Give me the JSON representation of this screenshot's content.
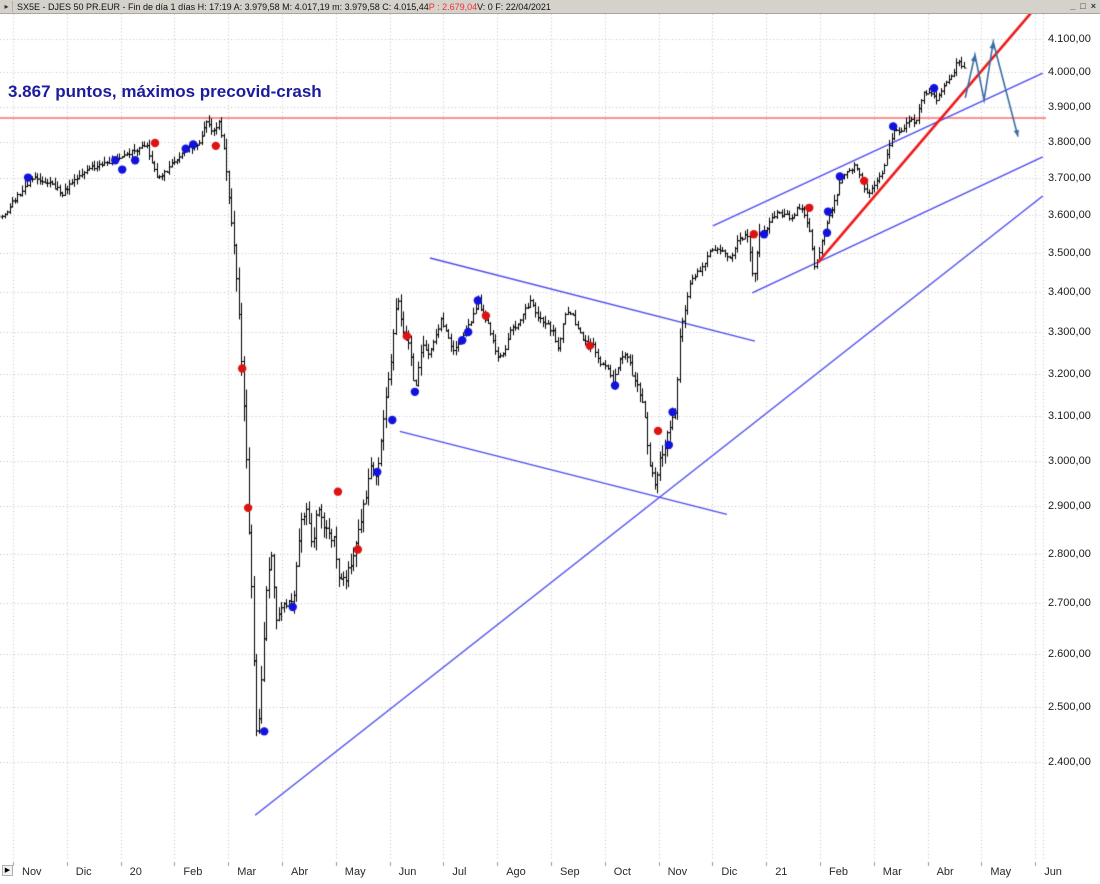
{
  "titlebar": {
    "icon": "▸",
    "main": "SX5E - DJES 50 PR.EUR - Fin de día 1 días  H: 17:19  A: 3.979,58  M: 4.017,19  m: 3.979,58  C: 4.015,44  ",
    "prev_close": "P : 2.679,04",
    "suffix": "  V: 0  F: 22/04/2021",
    "minimize": "_",
    "maximize": "□",
    "close": "×"
  },
  "annotation": {
    "text": "3.867 puntos, máximos precovid-crash",
    "price_level": 3867
  },
  "time_axis": {
    "nav_arrow": "▶"
  },
  "colors": {
    "background": "#ffffff",
    "grid": "#c4c4c4",
    "bars": "#000000",
    "blue_line": "#4d4dee",
    "red_trend": "#ee1a1a",
    "resistance": "#ff9090",
    "annotation": "#1c1c9c",
    "projection": "#3a6da3",
    "dot_blue": "#1212dd",
    "dot_red": "#dd1212",
    "titlebar_bg": "#d5d2cb"
  },
  "chart_data": {
    "type": "bar",
    "instrument": "SX5E - DJES 50 PR.EUR",
    "timeframe": "Fin de día 1 días",
    "ohlc_last": {
      "H": "17:19",
      "A": "3.979,58",
      "M": "4.017,19",
      "m": "3.979,58",
      "C": "4.015,44",
      "P": "2.679,04",
      "V": "0",
      "F": "22/04/2021"
    },
    "y_axis": {
      "scale": "log",
      "labels": [
        "4.100,00",
        "4.000,00",
        "3.900,00",
        "3.800,00",
        "3.700,00",
        "3.600,00",
        "3.500,00",
        "3.400,00",
        "3.300,00",
        "3.200,00",
        "3.100,00",
        "3.000,00",
        "2.900,00",
        "2.800,00",
        "2.700,00",
        "2.600,00",
        "2.500,00",
        "2.400,00"
      ],
      "values": [
        4100,
        4000,
        3900,
        3800,
        3700,
        3600,
        3500,
        3400,
        3300,
        3200,
        3100,
        3000,
        2900,
        2800,
        2700,
        2600,
        2500,
        2400
      ]
    },
    "x_axis": {
      "labels": [
        "Nov",
        "Dic",
        "20",
        "Feb",
        "Mar",
        "Abr",
        "May",
        "Jun",
        "Jul",
        "Ago",
        "Sep",
        "Oct",
        "Nov",
        "Dic",
        "21",
        "Feb",
        "Mar",
        "Abr",
        "May",
        "Jun"
      ],
      "start": "Nov 2019",
      "end": "Jun 2021"
    },
    "close_path": [
      [
        -0.2,
        3595
      ],
      [
        0.34,
        3700
      ],
      [
        0.63,
        3690
      ],
      [
        0.91,
        3660
      ],
      [
        1.21,
        3705
      ],
      [
        1.51,
        3730
      ],
      [
        1.9,
        3748
      ],
      [
        2.19,
        3770
      ],
      [
        2.49,
        3790
      ],
      [
        2.68,
        3690
      ],
      [
        2.88,
        3725
      ],
      [
        3.18,
        3778
      ],
      [
        3.46,
        3800
      ],
      [
        3.61,
        3858
      ],
      [
        3.72,
        3828
      ],
      [
        3.83,
        3856
      ],
      [
        3.96,
        3750
      ],
      [
        4.05,
        3580
      ],
      [
        4.15,
        3440
      ],
      [
        4.26,
        3215
      ],
      [
        4.35,
        2950
      ],
      [
        4.44,
        2700
      ],
      [
        4.53,
        2430
      ],
      [
        4.63,
        2560
      ],
      [
        4.72,
        2750
      ],
      [
        4.8,
        2790
      ],
      [
        4.89,
        2660
      ],
      [
        5.04,
        2700
      ],
      [
        5.2,
        2695
      ],
      [
        5.33,
        2860
      ],
      [
        5.45,
        2905
      ],
      [
        5.56,
        2820
      ],
      [
        5.67,
        2905
      ],
      [
        5.8,
        2845
      ],
      [
        5.95,
        2835
      ],
      [
        6.08,
        2735
      ],
      [
        6.23,
        2765
      ],
      [
        6.36,
        2820
      ],
      [
        6.49,
        2880
      ],
      [
        6.64,
        2985
      ],
      [
        6.77,
        2975
      ],
      [
        6.88,
        3090
      ],
      [
        7.01,
        3210
      ],
      [
        7.14,
        3385
      ],
      [
        7.25,
        3310
      ],
      [
        7.36,
        3270
      ],
      [
        7.47,
        3155
      ],
      [
        7.6,
        3280
      ],
      [
        7.71,
        3240
      ],
      [
        7.83,
        3280
      ],
      [
        7.94,
        3330
      ],
      [
        8.07,
        3290
      ],
      [
        8.18,
        3250
      ],
      [
        8.29,
        3275
      ],
      [
        8.4,
        3295
      ],
      [
        8.53,
        3340
      ],
      [
        8.64,
        3375
      ],
      [
        8.75,
        3345
      ],
      [
        8.87,
        3300
      ],
      [
        9.0,
        3245
      ],
      [
        9.13,
        3255
      ],
      [
        9.24,
        3305
      ],
      [
        9.37,
        3320
      ],
      [
        9.5,
        3355
      ],
      [
        9.63,
        3375
      ],
      [
        9.76,
        3330
      ],
      [
        9.89,
        3325
      ],
      [
        10.02,
        3305
      ],
      [
        10.13,
        3260
      ],
      [
        10.26,
        3350
      ],
      [
        10.39,
        3340
      ],
      [
        10.52,
        3305
      ],
      [
        10.65,
        3270
      ],
      [
        10.76,
        3270
      ],
      [
        10.89,
        3230
      ],
      [
        11.02,
        3215
      ],
      [
        11.15,
        3180
      ],
      [
        11.26,
        3230
      ],
      [
        11.39,
        3250
      ],
      [
        11.51,
        3205
      ],
      [
        11.62,
        3180
      ],
      [
        11.73,
        3105
      ],
      [
        11.84,
        2995
      ],
      [
        11.93,
        2955
      ],
      [
        12.03,
        3005
      ],
      [
        12.14,
        3045
      ],
      [
        12.23,
        3095
      ],
      [
        12.32,
        3105
      ],
      [
        12.38,
        3290
      ],
      [
        12.47,
        3350
      ],
      [
        12.58,
        3420
      ],
      [
        12.7,
        3450
      ],
      [
        12.81,
        3460
      ],
      [
        12.94,
        3505
      ],
      [
        13.07,
        3515
      ],
      [
        13.2,
        3500
      ],
      [
        13.31,
        3480
      ],
      [
        13.44,
        3525
      ],
      [
        13.55,
        3540
      ],
      [
        13.66,
        3550
      ],
      [
        13.76,
        3420
      ],
      [
        13.85,
        3535
      ],
      [
        13.96,
        3555
      ],
      [
        14.09,
        3585
      ],
      [
        14.22,
        3605
      ],
      [
        14.35,
        3600
      ],
      [
        14.46,
        3590
      ],
      [
        14.57,
        3615
      ],
      [
        14.68,
        3615
      ],
      [
        14.8,
        3560
      ],
      [
        14.89,
        3460
      ],
      [
        14.96,
        3480
      ],
      [
        15.07,
        3550
      ],
      [
        15.19,
        3605
      ],
      [
        15.3,
        3655
      ],
      [
        15.41,
        3705
      ],
      [
        15.54,
        3720
      ],
      [
        15.67,
        3735
      ],
      [
        15.78,
        3690
      ],
      [
        15.89,
        3650
      ],
      [
        16.0,
        3680
      ],
      [
        16.13,
        3705
      ],
      [
        16.26,
        3780
      ],
      [
        16.39,
        3840
      ],
      [
        16.52,
        3830
      ],
      [
        16.65,
        3860
      ],
      [
        16.78,
        3855
      ],
      [
        16.91,
        3940
      ],
      [
        17.05,
        3935
      ],
      [
        17.18,
        3920
      ],
      [
        17.31,
        3960
      ],
      [
        17.44,
        3990
      ],
      [
        17.55,
        4030
      ],
      [
        17.64,
        4020
      ],
      [
        17.7,
        4015
      ]
    ],
    "signals": {
      "blue": [
        [
          0.28,
          3700
        ],
        [
          1.9,
          3748
        ],
        [
          2.03,
          3722
        ],
        [
          2.27,
          3748
        ],
        [
          3.21,
          3780
        ],
        [
          3.35,
          3792
        ],
        [
          4.67,
          2455
        ],
        [
          5.2,
          2692
        ],
        [
          6.77,
          2975
        ],
        [
          7.05,
          3092
        ],
        [
          7.47,
          3157
        ],
        [
          8.35,
          3280
        ],
        [
          8.46,
          3300
        ],
        [
          8.64,
          3378
        ],
        [
          11.19,
          3172
        ],
        [
          12.19,
          3035
        ],
        [
          12.26,
          3110
        ],
        [
          13.96,
          3548
        ],
        [
          15.13,
          3552
        ],
        [
          15.15,
          3608
        ],
        [
          15.37,
          3703
        ],
        [
          16.36,
          3843
        ],
        [
          17.12,
          3953
        ]
      ],
      "red": [
        [
          2.64,
          3796
        ],
        [
          3.77,
          3788
        ],
        [
          4.26,
          3212
        ],
        [
          4.37,
          2897
        ],
        [
          6.04,
          2932
        ],
        [
          6.41,
          2809
        ],
        [
          7.32,
          3290
        ],
        [
          8.79,
          3340
        ],
        [
          10.72,
          3267
        ],
        [
          11.99,
          3067
        ],
        [
          13.77,
          3548
        ],
        [
          14.8,
          3618
        ],
        [
          15.82,
          3691
        ]
      ]
    },
    "lines": {
      "horizontal_resistance": {
        "price": 3867
      },
      "long_support": {
        "from": [
          4.5,
          2307
        ],
        "to": [
          19.14,
          3650
        ]
      },
      "triangle_upper": {
        "from": [
          7.75,
          3486
        ],
        "to": [
          13.79,
          3278
        ]
      },
      "triangle_lower": {
        "from": [
          7.19,
          3066
        ],
        "to": [
          13.27,
          2883
        ]
      },
      "channel_upper": {
        "from": [
          13.01,
          3570
        ],
        "to": [
          19.14,
          3998
        ]
      },
      "channel_lower": {
        "from": [
          13.74,
          3397
        ],
        "to": [
          19.14,
          3757
        ]
      },
      "red_trend": {
        "from": [
          14.96,
          3474
        ],
        "to": [
          19.01,
          4197
        ]
      },
      "projection": {
        "points": [
          [
            17.7,
            3925
          ],
          [
            17.88,
            4052
          ],
          [
            18.05,
            3919
          ],
          [
            18.22,
            4091
          ],
          [
            18.68,
            3814
          ]
        ],
        "arrow_at": [
          1,
          3,
          4
        ]
      }
    }
  }
}
